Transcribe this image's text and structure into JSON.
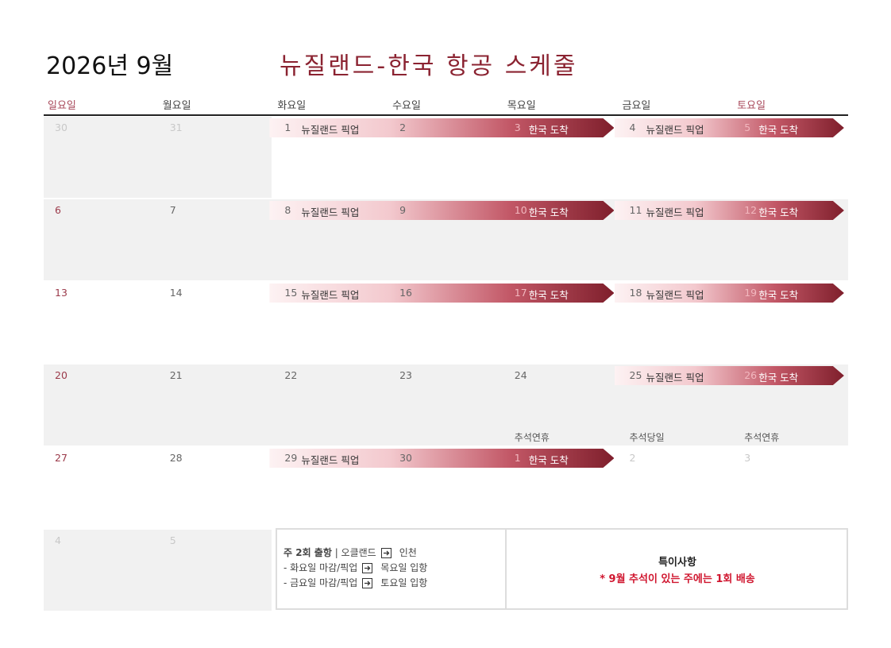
{
  "header": {
    "title": "2026년 9월",
    "subtitle": "뉴질랜드-한국 항공 스케줄"
  },
  "weekdays": [
    "일요일",
    "월요일",
    "화요일",
    "수요일",
    "목요일",
    "금요일",
    "토요일"
  ],
  "weeks": [
    {
      "shade": "weekend",
      "days": [
        {
          "day": "30",
          "muted": true
        },
        {
          "day": "31",
          "muted": true
        },
        {
          "day": "1",
          "label": "뉴질랜드 픽업"
        },
        {
          "day": "2"
        },
        {
          "day": "3",
          "label": "한국 도착"
        },
        {
          "day": "4",
          "label": "뉴질랜드 픽업"
        },
        {
          "day": "5",
          "label": "한국 도착"
        }
      ]
    },
    {
      "shade": "full",
      "days": [
        {
          "day": "6"
        },
        {
          "day": "7"
        },
        {
          "day": "8",
          "label": "뉴질랜드 픽업"
        },
        {
          "day": "9"
        },
        {
          "day": "10",
          "label": "한국 도착"
        },
        {
          "day": "11",
          "label": "뉴질랜드 픽업"
        },
        {
          "day": "12",
          "label": "한국 도착"
        }
      ]
    },
    {
      "shade": "none",
      "days": [
        {
          "day": "13"
        },
        {
          "day": "14"
        },
        {
          "day": "15",
          "label": "뉴질랜드 픽업"
        },
        {
          "day": "16"
        },
        {
          "day": "17",
          "label": "한국 도착"
        },
        {
          "day": "18",
          "label": "뉴질랜드 픽업"
        },
        {
          "day": "19",
          "label": "한국 도착"
        }
      ]
    },
    {
      "shade": "full",
      "days": [
        {
          "day": "20"
        },
        {
          "day": "21"
        },
        {
          "day": "22"
        },
        {
          "day": "23"
        },
        {
          "day": "24",
          "note": "추석연휴"
        },
        {
          "day": "25",
          "label": "뉴질랜드 픽업",
          "note": "추석당일"
        },
        {
          "day": "26",
          "label": "한국 도착",
          "note": "추석연휴"
        }
      ]
    },
    {
      "shade": "none",
      "days": [
        {
          "day": "27"
        },
        {
          "day": "28"
        },
        {
          "day": "29",
          "label": "뉴질랜드 픽업"
        },
        {
          "day": "30"
        },
        {
          "day": "1",
          "label": "한국 도착",
          "muted": true
        },
        {
          "day": "2",
          "muted": true
        },
        {
          "day": "3",
          "muted": true
        }
      ]
    },
    {
      "shade": "weekend",
      "days": [
        {
          "day": "4",
          "muted": true
        },
        {
          "day": "5",
          "muted": true
        }
      ]
    }
  ],
  "schedule": {
    "title": "주 2회 출항",
    "route_from": "| 오클랜드",
    "route_to": "인천",
    "lines": [
      {
        "from": "- 화요일 마감/픽업",
        "to": "목요일 입항"
      },
      {
        "from": "- 금요일 마감/픽업",
        "to": "토요일 입항"
      }
    ]
  },
  "notice": {
    "title": "특이사항",
    "text": "* 9월 추석이 있는 주에는 1회 배송"
  }
}
